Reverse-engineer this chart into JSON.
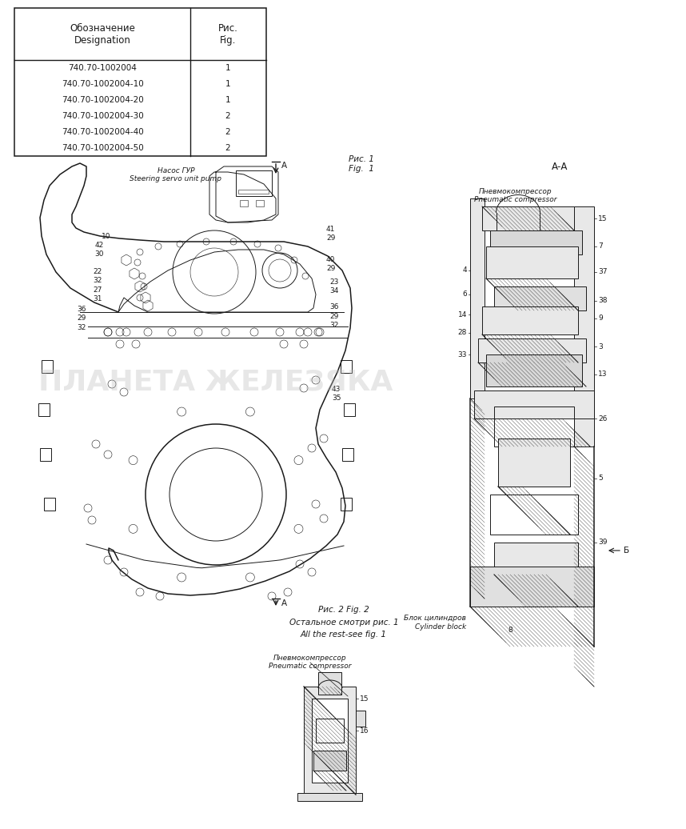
{
  "bg_color": "#ffffff",
  "fig_width": 8.58,
  "fig_height": 10.36,
  "dpi": 100,
  "text_color": "#1a1a1a",
  "line_color": "#1a1a1a",
  "table_rows": [
    [
      "740.70-1002004",
      "1"
    ],
    [
      "740.70-1002004-10",
      "1"
    ],
    [
      "740.70-1002004-20",
      "1"
    ],
    [
      "740.70-1002004-30",
      "2"
    ],
    [
      "740.70-1002004-40",
      "2"
    ],
    [
      "740.70-1002004-50",
      "2"
    ]
  ],
  "watermark": "ПЛАНЕТА ЖЕЛЕЗЯКА",
  "watermark_color": "#bbbbbb"
}
